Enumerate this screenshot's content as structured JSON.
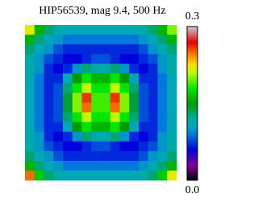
{
  "chart_data": {
    "type": "heatmap",
    "title": "HIP56539, mag 9.4, 500 Hz",
    "colormap": "nipy_spectral",
    "zlim": [
      0,
      0.3
    ],
    "zticks": [
      {
        "value": 0,
        "label": "0.0"
      },
      0.3
    ],
    "values": [
      [
        0.22,
        0.16,
        0.13,
        0.12,
        0.11,
        0.11,
        0.11,
        0.11,
        0.11,
        0.11,
        0.11,
        0.11,
        0.12,
        0.13,
        0.16,
        0.2
      ],
      [
        0.16,
        0.13,
        0.11,
        0.1,
        0.09,
        0.09,
        0.09,
        0.09,
        0.09,
        0.09,
        0.09,
        0.09,
        0.1,
        0.11,
        0.13,
        0.16
      ],
      [
        0.13,
        0.11,
        0.1,
        0.08,
        0.07,
        0.07,
        0.07,
        0.07,
        0.07,
        0.07,
        0.07,
        0.07,
        0.08,
        0.1,
        0.11,
        0.13
      ],
      [
        0.12,
        0.1,
        0.08,
        0.07,
        0.06,
        0.06,
        0.07,
        0.08,
        0.08,
        0.07,
        0.06,
        0.06,
        0.07,
        0.08,
        0.1,
        0.12
      ],
      [
        0.12,
        0.1,
        0.07,
        0.06,
        0.07,
        0.1,
        0.13,
        0.12,
        0.12,
        0.13,
        0.1,
        0.07,
        0.06,
        0.07,
        0.1,
        0.12
      ],
      [
        0.11,
        0.09,
        0.07,
        0.07,
        0.11,
        0.15,
        0.18,
        0.16,
        0.16,
        0.18,
        0.15,
        0.11,
        0.07,
        0.07,
        0.09,
        0.11
      ],
      [
        0.11,
        0.09,
        0.07,
        0.08,
        0.13,
        0.18,
        0.21,
        0.18,
        0.18,
        0.21,
        0.18,
        0.13,
        0.08,
        0.07,
        0.09,
        0.11
      ],
      [
        0.11,
        0.09,
        0.07,
        0.08,
        0.14,
        0.2,
        0.26,
        0.19,
        0.19,
        0.26,
        0.2,
        0.14,
        0.08,
        0.07,
        0.09,
        0.11
      ],
      [
        0.11,
        0.09,
        0.07,
        0.08,
        0.14,
        0.2,
        0.25,
        0.19,
        0.19,
        0.25,
        0.2,
        0.14,
        0.08,
        0.07,
        0.09,
        0.11
      ],
      [
        0.11,
        0.09,
        0.07,
        0.08,
        0.13,
        0.18,
        0.21,
        0.18,
        0.18,
        0.21,
        0.18,
        0.13,
        0.08,
        0.07,
        0.09,
        0.11
      ],
      [
        0.11,
        0.09,
        0.07,
        0.07,
        0.11,
        0.15,
        0.18,
        0.16,
        0.16,
        0.18,
        0.15,
        0.11,
        0.07,
        0.07,
        0.09,
        0.11
      ],
      [
        0.12,
        0.1,
        0.07,
        0.06,
        0.07,
        0.1,
        0.13,
        0.12,
        0.12,
        0.13,
        0.1,
        0.07,
        0.06,
        0.07,
        0.1,
        0.12
      ],
      [
        0.12,
        0.1,
        0.08,
        0.07,
        0.06,
        0.06,
        0.07,
        0.08,
        0.08,
        0.07,
        0.06,
        0.06,
        0.07,
        0.08,
        0.1,
        0.12
      ],
      [
        0.13,
        0.11,
        0.1,
        0.08,
        0.07,
        0.07,
        0.07,
        0.07,
        0.07,
        0.07,
        0.07,
        0.07,
        0.08,
        0.1,
        0.11,
        0.13
      ],
      [
        0.16,
        0.13,
        0.11,
        0.1,
        0.09,
        0.09,
        0.09,
        0.09,
        0.09,
        0.09,
        0.09,
        0.09,
        0.1,
        0.11,
        0.13,
        0.16
      ],
      [
        0.25,
        0.17,
        0.13,
        0.12,
        0.11,
        0.11,
        0.11,
        0.11,
        0.11,
        0.11,
        0.11,
        0.11,
        0.12,
        0.13,
        0.17,
        0.22
      ]
    ]
  }
}
